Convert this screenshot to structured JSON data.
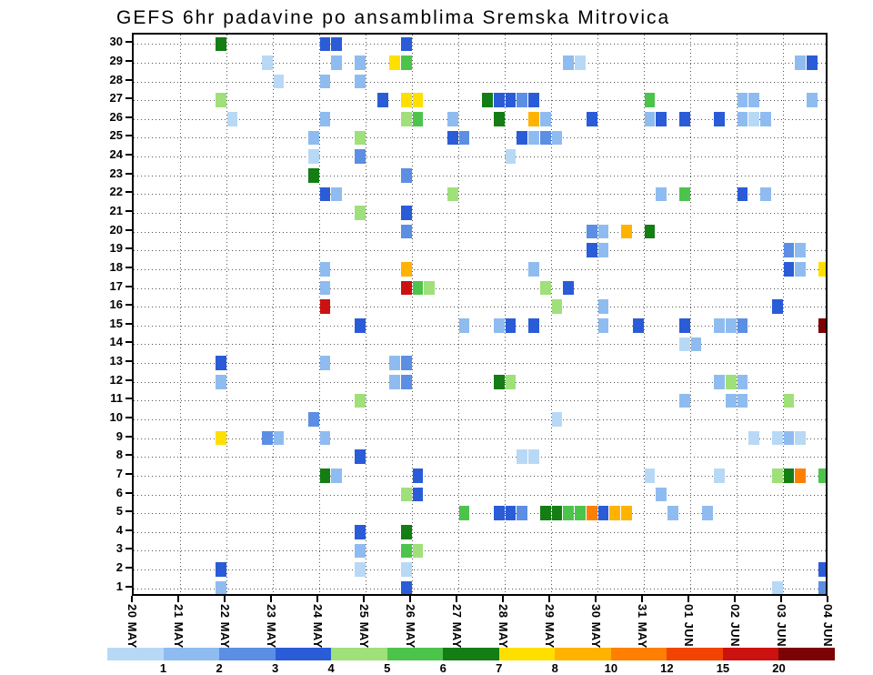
{
  "title": "GEFS 6hr padavine po ansamblima Sremska Mitrovica",
  "chart_data": {
    "type": "heatmap",
    "title": "GEFS 6hr padavine po ansamblima Sremska Mitrovica",
    "xlabel": "",
    "ylabel": "",
    "grid": true,
    "x_axis": {
      "tick_labels": [
        "20 MAY",
        "21 MAY",
        "22 MAY",
        "23 MAY",
        "24 MAY",
        "25 MAY",
        "26 MAY",
        "27 MAY",
        "28 MAY",
        "29 MAY",
        "30 MAY",
        "31 MAY",
        "01 JUN",
        "02 JUN",
        "03 JUN",
        "04 JUN"
      ],
      "days": 15,
      "steps_per_day": 4
    },
    "y_axis": {
      "tick_labels": [
        "1",
        "2",
        "3",
        "4",
        "5",
        "6",
        "7",
        "8",
        "9",
        "10",
        "11",
        "12",
        "13",
        "14",
        "15",
        "16",
        "17",
        "18",
        "19",
        "20",
        "21",
        "22",
        "23",
        "24",
        "25",
        "26",
        "27",
        "28",
        "29",
        "30"
      ],
      "rows": 30,
      "orientation": "bottom_to_top"
    },
    "colors": {
      "background": "#ffffff",
      "axis": "#000000",
      "grid_dots": "#555555"
    },
    "legend": {
      "position": "bottom",
      "boundary_labels": [
        "1",
        "2",
        "3",
        "4",
        "5",
        "6",
        "7",
        "8",
        "10",
        "12",
        "15",
        "20"
      ],
      "colors": [
        "#b8d9f6",
        "#8fbcf0",
        "#5c8ee4",
        "#2a5cd8",
        "#a0e07a",
        "#4cc44c",
        "#147d14",
        "#ffdf00",
        "#ffb300",
        "#ff7f00",
        "#f24400",
        "#cc1111",
        "#7c0303"
      ]
    },
    "cells": [
      [
        30,
        7,
        6
      ],
      [
        30,
        16,
        3
      ],
      [
        30,
        17,
        3
      ],
      [
        30,
        23,
        3
      ],
      [
        29,
        11,
        0
      ],
      [
        29,
        17,
        1
      ],
      [
        29,
        19,
        1
      ],
      [
        29,
        22,
        7
      ],
      [
        29,
        23,
        5
      ],
      [
        29,
        37,
        1
      ],
      [
        29,
        38,
        0
      ],
      [
        29,
        57,
        1
      ],
      [
        29,
        58,
        3
      ],
      [
        28,
        12,
        0
      ],
      [
        28,
        16,
        1
      ],
      [
        28,
        19,
        1
      ],
      [
        27,
        7,
        4
      ],
      [
        27,
        21,
        3
      ],
      [
        27,
        23,
        7
      ],
      [
        27,
        24,
        7
      ],
      [
        27,
        30,
        6
      ],
      [
        27,
        31,
        3
      ],
      [
        27,
        32,
        3
      ],
      [
        27,
        33,
        2
      ],
      [
        27,
        34,
        3
      ],
      [
        27,
        44,
        5
      ],
      [
        27,
        52,
        1
      ],
      [
        27,
        53,
        1
      ],
      [
        27,
        58,
        1
      ],
      [
        26,
        8,
        0
      ],
      [
        26,
        16,
        1
      ],
      [
        26,
        23,
        4
      ],
      [
        26,
        24,
        5
      ],
      [
        26,
        27,
        1
      ],
      [
        26,
        31,
        6
      ],
      [
        26,
        34,
        8
      ],
      [
        26,
        35,
        1
      ],
      [
        26,
        39,
        3
      ],
      [
        26,
        44,
        1
      ],
      [
        26,
        45,
        3
      ],
      [
        26,
        47,
        3
      ],
      [
        26,
        50,
        3
      ],
      [
        26,
        52,
        1
      ],
      [
        26,
        53,
        0
      ],
      [
        26,
        54,
        1
      ],
      [
        25,
        15,
        1
      ],
      [
        25,
        19,
        4
      ],
      [
        25,
        27,
        3
      ],
      [
        25,
        28,
        2
      ],
      [
        25,
        33,
        3
      ],
      [
        25,
        34,
        1
      ],
      [
        25,
        35,
        2
      ],
      [
        25,
        36,
        1
      ],
      [
        24,
        15,
        0
      ],
      [
        24,
        19,
        2
      ],
      [
        24,
        32,
        0
      ],
      [
        23,
        15,
        6
      ],
      [
        23,
        23,
        2
      ],
      [
        22,
        16,
        3
      ],
      [
        22,
        17,
        1
      ],
      [
        22,
        27,
        4
      ],
      [
        22,
        45,
        1
      ],
      [
        22,
        47,
        5
      ],
      [
        22,
        52,
        3
      ],
      [
        22,
        54,
        1
      ],
      [
        21,
        19,
        4
      ],
      [
        21,
        23,
        3
      ],
      [
        20,
        23,
        2
      ],
      [
        20,
        39,
        2
      ],
      [
        20,
        40,
        1
      ],
      [
        20,
        42,
        8
      ],
      [
        20,
        44,
        6
      ],
      [
        19,
        39,
        3
      ],
      [
        19,
        40,
        1
      ],
      [
        19,
        56,
        2
      ],
      [
        19,
        57,
        1
      ],
      [
        18,
        16,
        1
      ],
      [
        18,
        23,
        8
      ],
      [
        18,
        34,
        1
      ],
      [
        18,
        56,
        3
      ],
      [
        18,
        57,
        1
      ],
      [
        18,
        59,
        7
      ],
      [
        17,
        16,
        1
      ],
      [
        17,
        23,
        11
      ],
      [
        17,
        24,
        5
      ],
      [
        17,
        25,
        4
      ],
      [
        17,
        35,
        4
      ],
      [
        17,
        37,
        3
      ],
      [
        16,
        16,
        11
      ],
      [
        16,
        36,
        4
      ],
      [
        16,
        40,
        1
      ],
      [
        16,
        55,
        3
      ],
      [
        15,
        19,
        3
      ],
      [
        15,
        28,
        1
      ],
      [
        15,
        31,
        1
      ],
      [
        15,
        32,
        3
      ],
      [
        15,
        34,
        3
      ],
      [
        15,
        40,
        1
      ],
      [
        15,
        43,
        3
      ],
      [
        15,
        47,
        3
      ],
      [
        15,
        50,
        1
      ],
      [
        15,
        51,
        1
      ],
      [
        15,
        52,
        2
      ],
      [
        15,
        59,
        12
      ],
      [
        14,
        47,
        0
      ],
      [
        14,
        48,
        1
      ],
      [
        13,
        7,
        3
      ],
      [
        13,
        16,
        1
      ],
      [
        13,
        22,
        1
      ],
      [
        13,
        23,
        2
      ],
      [
        12,
        7,
        1
      ],
      [
        12,
        22,
        1
      ],
      [
        12,
        23,
        2
      ],
      [
        12,
        31,
        6
      ],
      [
        12,
        32,
        4
      ],
      [
        12,
        50,
        1
      ],
      [
        12,
        51,
        4
      ],
      [
        12,
        52,
        1
      ],
      [
        11,
        19,
        4
      ],
      [
        11,
        47,
        1
      ],
      [
        11,
        51,
        1
      ],
      [
        11,
        52,
        1
      ],
      [
        11,
        56,
        4
      ],
      [
        10,
        15,
        2
      ],
      [
        10,
        36,
        0
      ],
      [
        9,
        7,
        7
      ],
      [
        9,
        11,
        2
      ],
      [
        9,
        12,
        1
      ],
      [
        9,
        16,
        1
      ],
      [
        9,
        53,
        0
      ],
      [
        9,
        55,
        0
      ],
      [
        9,
        56,
        1
      ],
      [
        9,
        57,
        0
      ],
      [
        8,
        19,
        3
      ],
      [
        8,
        33,
        0
      ],
      [
        8,
        34,
        0
      ],
      [
        7,
        16,
        6
      ],
      [
        7,
        17,
        1
      ],
      [
        7,
        24,
        3
      ],
      [
        7,
        44,
        0
      ],
      [
        7,
        50,
        0
      ],
      [
        7,
        55,
        4
      ],
      [
        7,
        56,
        6
      ],
      [
        7,
        57,
        9
      ],
      [
        7,
        59,
        5
      ],
      [
        6,
        23,
        4
      ],
      [
        6,
        24,
        3
      ],
      [
        6,
        45,
        1
      ],
      [
        5,
        28,
        5
      ],
      [
        5,
        31,
        3
      ],
      [
        5,
        32,
        3
      ],
      [
        5,
        33,
        2
      ],
      [
        5,
        35,
        6
      ],
      [
        5,
        36,
        6
      ],
      [
        5,
        37,
        5
      ],
      [
        5,
        38,
        5
      ],
      [
        5,
        39,
        9
      ],
      [
        5,
        40,
        3
      ],
      [
        5,
        41,
        8
      ],
      [
        5,
        42,
        8
      ],
      [
        5,
        46,
        1
      ],
      [
        5,
        49,
        1
      ],
      [
        4,
        19,
        3
      ],
      [
        4,
        23,
        6
      ],
      [
        3,
        19,
        1
      ],
      [
        3,
        23,
        5
      ],
      [
        3,
        24,
        4
      ],
      [
        2,
        7,
        3
      ],
      [
        2,
        19,
        0
      ],
      [
        2,
        23,
        0
      ],
      [
        2,
        59,
        3
      ],
      [
        1,
        7,
        1
      ],
      [
        1,
        23,
        3
      ],
      [
        1,
        55,
        0
      ],
      [
        1,
        59,
        2
      ]
    ]
  }
}
